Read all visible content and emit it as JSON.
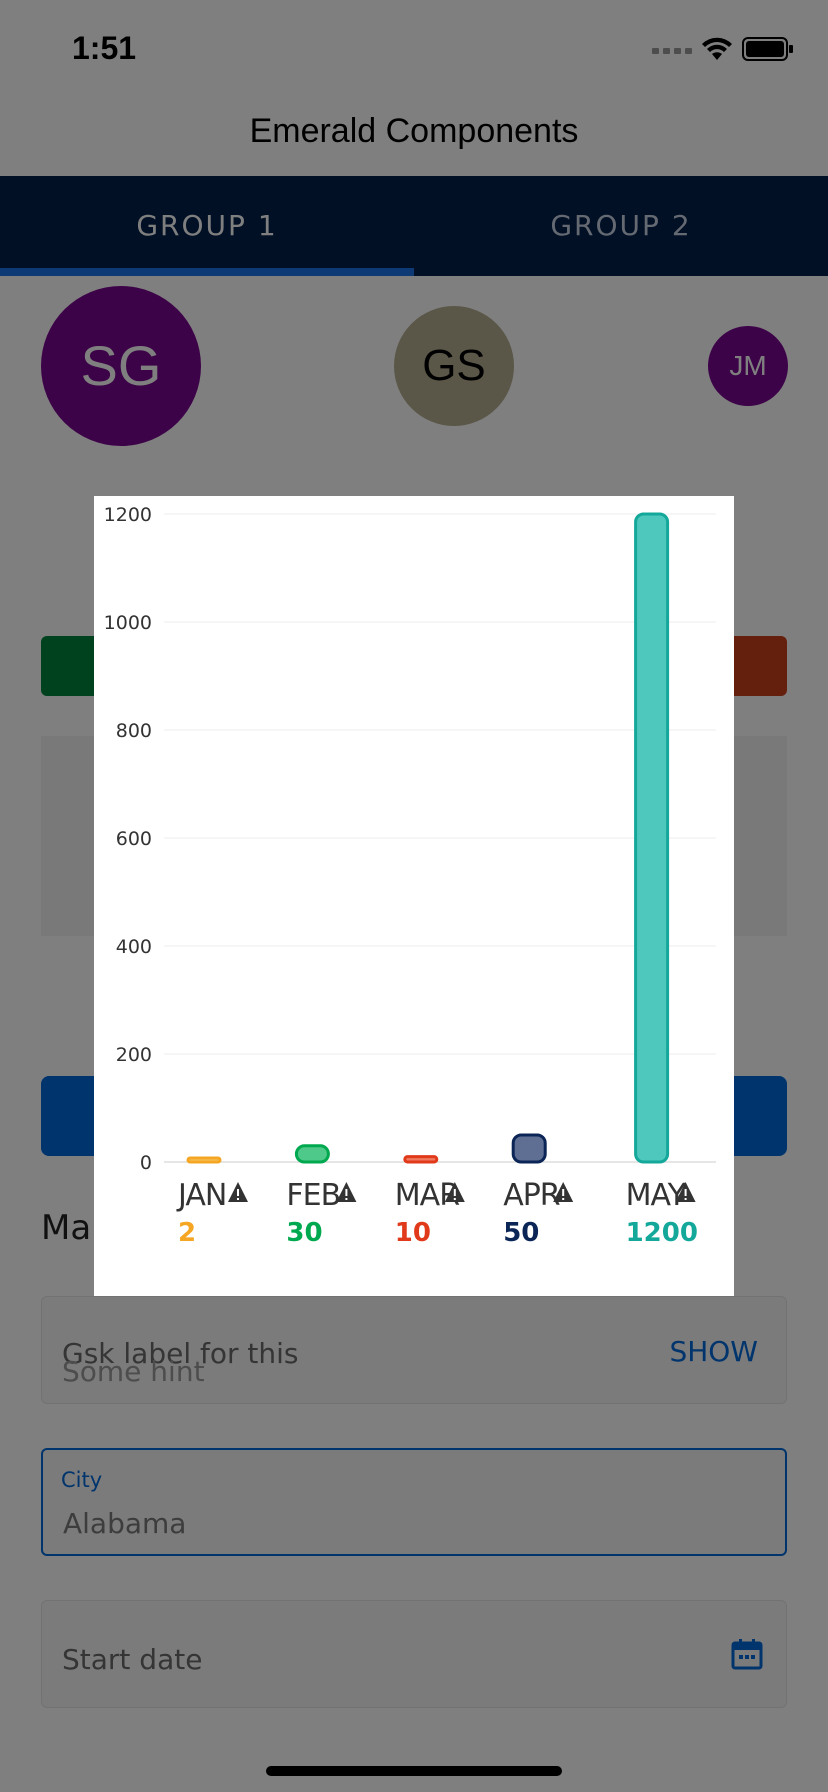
{
  "status_bar": {
    "time": "1:51",
    "icons": [
      "signal-icon",
      "wifi-icon",
      "battery-icon"
    ]
  },
  "header": {
    "title": "Emerald Components"
  },
  "tabs": [
    {
      "label": "GROUP 1",
      "active": true
    },
    {
      "label": "GROUP 2",
      "active": false
    }
  ],
  "avatars": [
    {
      "initials": "SG",
      "color": "#7a0690"
    },
    {
      "initials": "GS",
      "color": "#b5ae91"
    },
    {
      "initials": "JM",
      "color": "#7a0690"
    }
  ],
  "section": {
    "heading": "Mai"
  },
  "password_field": {
    "label": "Gsk label for this",
    "hint": "Some hint",
    "action": "SHOW"
  },
  "city_field": {
    "label": "City",
    "value": "Alabama"
  },
  "date_field": {
    "placeholder": "Start date",
    "icon": "calendar-icon"
  },
  "colors": {
    "accent": "#0068d9",
    "tab_bar": "#03204a",
    "avatar_purple": "#7a0690"
  },
  "chart_data": {
    "type": "bar",
    "categories": [
      "JAN",
      "FEB",
      "MAR",
      "APR",
      "MAY"
    ],
    "values": [
      2,
      30,
      10,
      50,
      1200
    ],
    "value_labels": [
      "2",
      "30",
      "10",
      "50",
      "1200"
    ],
    "colors": [
      "#f5a623",
      "#00a94f",
      "#e03a1b",
      "#0b2556",
      "#14a89b"
    ],
    "fill_colors": [
      "#f8c66a",
      "#4fc98a",
      "#ef7a5f",
      "#5f6f94",
      "#4ec7bd"
    ],
    "ylim": [
      0,
      1200
    ],
    "yticks": [
      "0",
      "200",
      "400",
      "600",
      "800",
      "1000",
      "1200"
    ],
    "ytick_values": [
      0,
      200,
      400,
      600,
      800,
      1000,
      1200
    ],
    "warning_icon": "warning-icon",
    "grid": true,
    "title": "",
    "xlabel": "",
    "ylabel": ""
  }
}
